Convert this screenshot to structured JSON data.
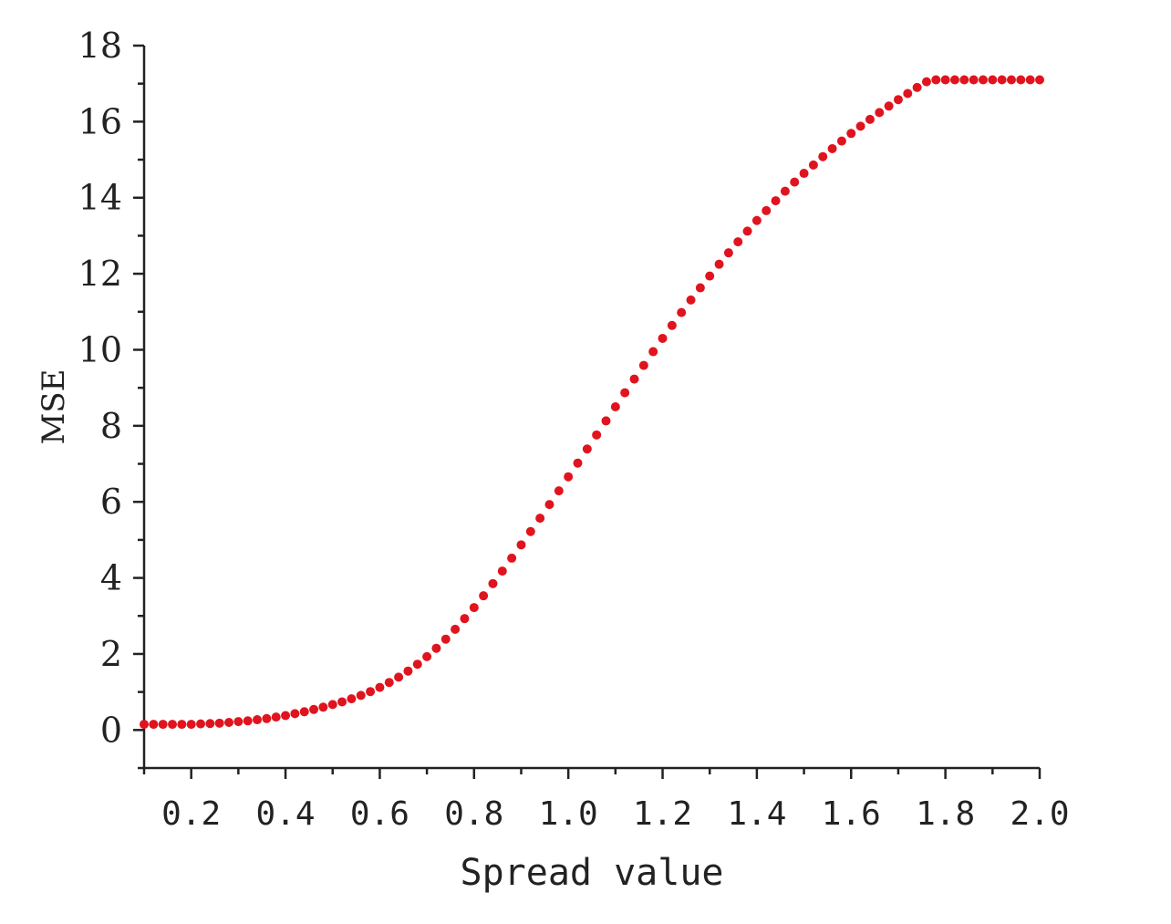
{
  "chart_data": {
    "type": "scatter",
    "title": "",
    "xlabel": "Spread value",
    "ylabel": "MSE",
    "xlim": [
      0.1,
      2.0
    ],
    "ylim": [
      -1,
      18
    ],
    "xticks": [
      0.2,
      0.4,
      0.6,
      0.8,
      1.0,
      1.2,
      1.4,
      1.6,
      1.8,
      2.0
    ],
    "xtick_labels": [
      "0.2",
      "0.4",
      "0.6",
      "0.8",
      "1.0",
      "1.2",
      "1.4",
      "1.6",
      "1.8",
      "2.0"
    ],
    "yticks": [
      0,
      2,
      4,
      6,
      8,
      10,
      12,
      14,
      16,
      18
    ],
    "ytick_labels": [
      "0",
      "2",
      "4",
      "6",
      "8",
      "10",
      "12",
      "14",
      "16",
      "18"
    ],
    "grid": false,
    "marker_color": "#e0141e",
    "series": [
      {
        "x": [
          0.1,
          0.12,
          0.14,
          0.16,
          0.18,
          0.2,
          0.22,
          0.24,
          0.26,
          0.28,
          0.3,
          0.32,
          0.34,
          0.36,
          0.38,
          0.4,
          0.42,
          0.44,
          0.46,
          0.48,
          0.5,
          0.52,
          0.54,
          0.56,
          0.58,
          0.6,
          0.62,
          0.64,
          0.66,
          0.68,
          0.7,
          0.72,
          0.74,
          0.76,
          0.78,
          0.8,
          0.82,
          0.84,
          0.86,
          0.88,
          0.9,
          0.92,
          0.94,
          0.96,
          0.98,
          1.0,
          1.02,
          1.04,
          1.06,
          1.08,
          1.1,
          1.12,
          1.14,
          1.16,
          1.18,
          1.2,
          1.22,
          1.24,
          1.26,
          1.28,
          1.3,
          1.32,
          1.34,
          1.36,
          1.38,
          1.4,
          1.42,
          1.44,
          1.46,
          1.48,
          1.5,
          1.52,
          1.54,
          1.56,
          1.58,
          1.6,
          1.62,
          1.64,
          1.66,
          1.68,
          1.7,
          1.72,
          1.74,
          1.76,
          1.78,
          1.8,
          1.82,
          1.84,
          1.86,
          1.88,
          1.9,
          1.92,
          1.94,
          1.96,
          1.98,
          2.0
        ],
        "y": [
          0.15,
          0.15,
          0.15,
          0.15,
          0.15,
          0.15,
          0.16,
          0.17,
          0.18,
          0.2,
          0.22,
          0.24,
          0.27,
          0.3,
          0.34,
          0.38,
          0.43,
          0.48,
          0.54,
          0.6,
          0.67,
          0.74,
          0.82,
          0.91,
          1.01,
          1.12,
          1.25,
          1.39,
          1.55,
          1.73,
          1.93,
          2.15,
          2.39,
          2.65,
          2.93,
          3.22,
          3.53,
          3.85,
          4.18,
          4.52,
          4.87,
          5.22,
          5.57,
          5.93,
          6.29,
          6.66,
          7.02,
          7.39,
          7.76,
          8.13,
          8.5,
          8.87,
          9.23,
          9.59,
          9.95,
          10.3,
          10.64,
          10.98,
          11.31,
          11.63,
          11.94,
          12.25,
          12.55,
          12.84,
          13.12,
          13.4,
          13.66,
          13.92,
          14.17,
          14.41,
          14.64,
          14.86,
          15.08,
          15.29,
          15.49,
          15.69,
          15.88,
          16.06,
          16.24,
          16.41,
          16.58,
          16.74,
          16.9,
          17.05,
          17.1,
          17.1,
          17.1,
          17.1,
          17.1,
          17.1,
          17.1,
          17.1,
          17.1,
          17.1,
          17.1,
          17.1
        ]
      }
    ]
  }
}
